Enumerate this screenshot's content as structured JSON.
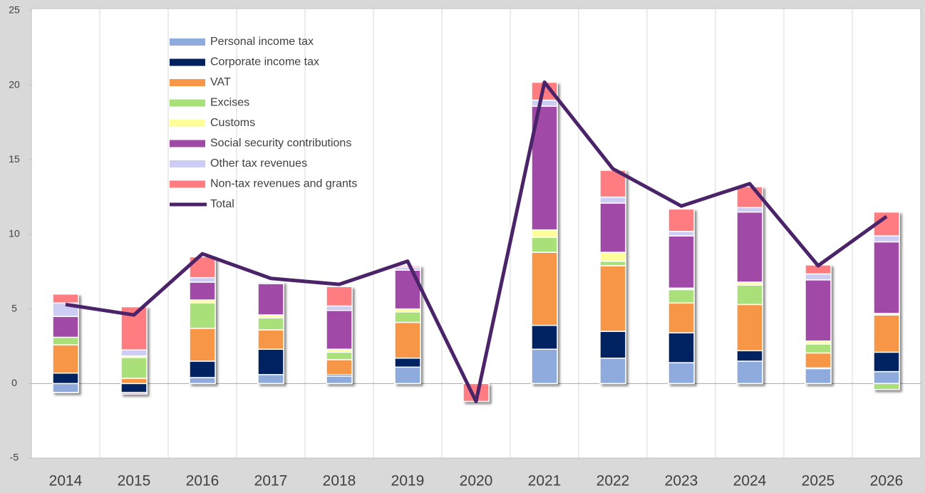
{
  "chart_data": {
    "type": "bar",
    "categories": [
      "2014",
      "2015",
      "2016",
      "2017",
      "2018",
      "2019",
      "2020",
      "2021",
      "2022",
      "2023",
      "2024",
      "2025",
      "2026"
    ],
    "series": [
      {
        "name": "Personal income tax",
        "color": "#8faadc",
        "values": [
          -0.6,
          0,
          0.4,
          0.6,
          0.5,
          1.1,
          0,
          2.3,
          1.7,
          1.4,
          1.5,
          1.0,
          0.8
        ]
      },
      {
        "name": "Corporate income tax",
        "color": "#002060",
        "values": [
          0.7,
          -0.6,
          1.1,
          1.7,
          0.1,
          0.6,
          0,
          1.6,
          1.8,
          2.0,
          0.7,
          0.05,
          1.3
        ]
      },
      {
        "name": "VAT",
        "color": "#f79646",
        "values": [
          1.9,
          0.35,
          2.2,
          1.3,
          1.0,
          2.4,
          0,
          4.9,
          4.4,
          2.0,
          3.1,
          1.0,
          2.5
        ]
      },
      {
        "name": "Excises",
        "color": "#a9e07a",
        "values": [
          0.5,
          1.4,
          1.7,
          0.8,
          0.5,
          0.7,
          0,
          1.0,
          0.3,
          0.9,
          1.3,
          0.6,
          -0.4
        ]
      },
      {
        "name": "Customs",
        "color": "#ffff99",
        "values": [
          0,
          0.1,
          0.2,
          0.2,
          0.2,
          0.2,
          0,
          0.5,
          0.6,
          0.1,
          0.2,
          0.2,
          0.1
        ]
      },
      {
        "name": "Social security contributions",
        "color": "#a04aa7",
        "values": [
          1.4,
          -0.1,
          1.2,
          2.1,
          2.6,
          2.6,
          0,
          8.3,
          3.3,
          3.5,
          4.7,
          4.1,
          4.8
        ]
      },
      {
        "name": "Other tax revenues",
        "color": "#ccccf5",
        "values": [
          0.9,
          0.4,
          0.3,
          0.1,
          0.3,
          0.2,
          0,
          0.4,
          0.4,
          0.3,
          0.3,
          0.4,
          0.4
        ]
      },
      {
        "name": "Non-tax revenues and grants",
        "color": "#ff7c80",
        "values": [
          0.6,
          2.9,
          1.4,
          0,
          1.3,
          0.1,
          -1.2,
          1.2,
          1.8,
          1.5,
          1.4,
          0.6,
          1.6
        ]
      },
      {
        "name": "Total",
        "type": "line",
        "color": "#4b2369",
        "values": [
          5.3,
          4.6,
          8.7,
          7.05,
          6.65,
          8.2,
          -1.2,
          20.2,
          14.4,
          11.9,
          13.4,
          7.9,
          11.2
        ]
      }
    ],
    "ylim": [
      -5,
      25
    ],
    "yticks": [
      -5,
      0,
      5,
      10,
      15,
      20,
      25
    ],
    "legend": "upper left"
  }
}
